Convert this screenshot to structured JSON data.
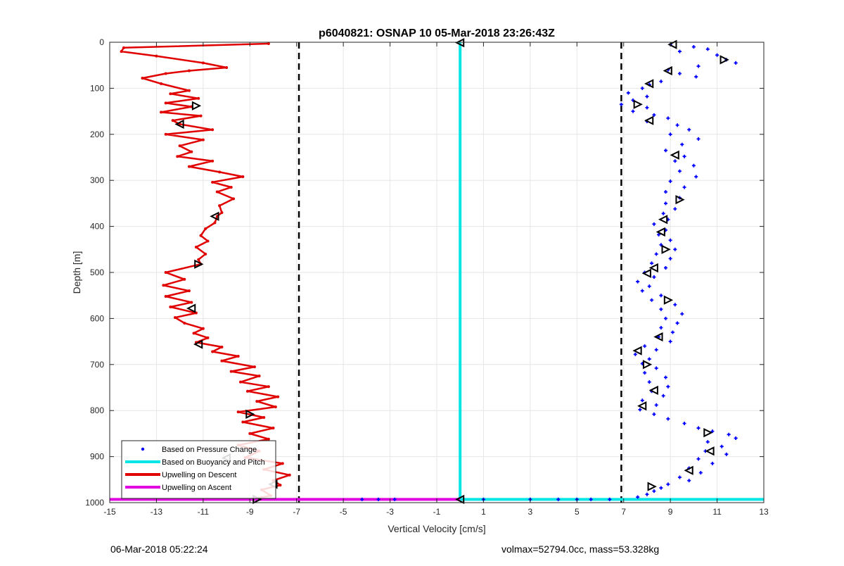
{
  "chart_data": {
    "type": "scatter",
    "title": "p6040821: OSNAP 10 05-Mar-2018 23:26:43Z",
    "xlabel": "Vertical Velocity [cm/s]",
    "ylabel": "Depth [m]",
    "xlim": [
      -15,
      13
    ],
    "ylim": [
      0,
      1000
    ],
    "y_reversed": true,
    "grid": true,
    "x_ticks": [
      -15,
      -13,
      -11,
      -9,
      -7,
      -5,
      -3,
      -1,
      1,
      3,
      5,
      7,
      9,
      11,
      13
    ],
    "y_ticks": [
      0,
      100,
      200,
      300,
      400,
      500,
      600,
      700,
      800,
      900,
      1000
    ],
    "legend_position": "bottom-left",
    "legend": [
      {
        "label": "Based on Pressure Change",
        "color": "#0000ff",
        "style": "dot"
      },
      {
        "label": "Based on Buoyancy and Pitch",
        "color": "#00e5e5",
        "style": "line"
      },
      {
        "label": "Upwelling on Descent",
        "color": "#e00000",
        "style": "line"
      },
      {
        "label": "Upwelling on Ascent",
        "color": "#e000e0",
        "style": "line"
      }
    ],
    "threshold_lines": [
      -6.9,
      6.9
    ],
    "series": [
      {
        "name": "Upwelling on Descent",
        "color": "#e00000",
        "points": [
          [
            -8.2,
            3
          ],
          [
            -14.4,
            12
          ],
          [
            -14.5,
            20
          ],
          [
            -13.0,
            30
          ],
          [
            -11.0,
            45
          ],
          [
            -10.0,
            55
          ],
          [
            -11.6,
            62
          ],
          [
            -12.6,
            68
          ],
          [
            -13.6,
            78
          ],
          [
            -12.8,
            90
          ],
          [
            -11.6,
            105
          ],
          [
            -12.4,
            112
          ],
          [
            -11.2,
            122
          ],
          [
            -12.6,
            132
          ],
          [
            -11.5,
            140
          ],
          [
            -12.8,
            152
          ],
          [
            -11.1,
            160
          ],
          [
            -12.3,
            170
          ],
          [
            -12.0,
            178
          ],
          [
            -10.6,
            190
          ],
          [
            -12.6,
            200
          ],
          [
            -11.0,
            212
          ],
          [
            -12.0,
            225
          ],
          [
            -11.5,
            238
          ],
          [
            -12.1,
            248
          ],
          [
            -10.6,
            258
          ],
          [
            -11.6,
            270
          ],
          [
            -10.3,
            282
          ],
          [
            -9.3,
            292
          ],
          [
            -10.6,
            304
          ],
          [
            -9.8,
            315
          ],
          [
            -10.4,
            325
          ],
          [
            -9.7,
            340
          ],
          [
            -10.3,
            355
          ],
          [
            -10.2,
            370
          ],
          [
            -10.4,
            378
          ],
          [
            -10.5,
            392
          ],
          [
            -10.9,
            405
          ],
          [
            -11.1,
            420
          ],
          [
            -10.8,
            432
          ],
          [
            -11.3,
            445
          ],
          [
            -10.9,
            460
          ],
          [
            -11.2,
            472
          ],
          [
            -11.1,
            482
          ],
          [
            -12.6,
            500
          ],
          [
            -11.8,
            515
          ],
          [
            -12.7,
            528
          ],
          [
            -11.6,
            540
          ],
          [
            -12.6,
            552
          ],
          [
            -11.5,
            565
          ],
          [
            -12.4,
            575
          ],
          [
            -11.3,
            588
          ],
          [
            -12.2,
            598
          ],
          [
            -11.8,
            610
          ],
          [
            -11.0,
            622
          ],
          [
            -11.4,
            632
          ],
          [
            -10.8,
            642
          ],
          [
            -11.3,
            652
          ],
          [
            -10.2,
            662
          ],
          [
            -10.6,
            672
          ],
          [
            -9.5,
            682
          ],
          [
            -10.2,
            692
          ],
          [
            -8.8,
            705
          ],
          [
            -9.8,
            715
          ],
          [
            -8.6,
            725
          ],
          [
            -9.4,
            738
          ],
          [
            -8.2,
            748
          ],
          [
            -9.1,
            758
          ],
          [
            -7.8,
            770
          ],
          [
            -8.7,
            780
          ],
          [
            -7.9,
            792
          ],
          [
            -9.5,
            803
          ],
          [
            -8.4,
            815
          ],
          [
            -9.3,
            825
          ],
          [
            -8.0,
            838
          ],
          [
            -9.0,
            850
          ],
          [
            -8.2,
            862
          ],
          [
            -9.5,
            875
          ],
          [
            -8.6,
            888
          ],
          [
            -9.2,
            902
          ],
          [
            -7.6,
            915
          ],
          [
            -8.4,
            928
          ],
          [
            -7.3,
            940
          ],
          [
            -8.0,
            952
          ],
          [
            -7.7,
            962
          ],
          [
            -8.5,
            972
          ],
          [
            -8.1,
            985
          ],
          [
            -8.7,
            990
          ]
        ]
      },
      {
        "name": "Based on Buoyancy and Pitch",
        "color": "#00e5e5",
        "points": [
          [
            0.0,
            0
          ],
          [
            0.0,
            993
          ],
          [
            13,
            993
          ]
        ]
      },
      {
        "name": "Upwelling on Ascent",
        "color": "#e000e0",
        "points": [
          [
            -15,
            993
          ],
          [
            0.0,
            993
          ]
        ]
      },
      {
        "name": "Based on Pressure Change",
        "color": "#0000ff",
        "points": [
          [
            9.0,
            5
          ],
          [
            10.0,
            10
          ],
          [
            10.6,
            15
          ],
          [
            9.4,
            20
          ],
          [
            11.0,
            28
          ],
          [
            11.4,
            38
          ],
          [
            11.8,
            45
          ],
          [
            10.2,
            52
          ],
          [
            8.9,
            60
          ],
          [
            9.4,
            68
          ],
          [
            10.1,
            75
          ],
          [
            8.6,
            85
          ],
          [
            8.1,
            92
          ],
          [
            7.8,
            100
          ],
          [
            7.2,
            110
          ],
          [
            8.0,
            118
          ],
          [
            7.4,
            126
          ],
          [
            6.9,
            135
          ],
          [
            8.0,
            142
          ],
          [
            7.4,
            150
          ],
          [
            8.3,
            158
          ],
          [
            8.9,
            165
          ],
          [
            8.0,
            172
          ],
          [
            9.3,
            180
          ],
          [
            9.8,
            190
          ],
          [
            9.0,
            200
          ],
          [
            10.2,
            210
          ],
          [
            9.5,
            222
          ],
          [
            8.8,
            235
          ],
          [
            9.6,
            248
          ],
          [
            9.2,
            258
          ],
          [
            10.0,
            268
          ],
          [
            9.4,
            280
          ],
          [
            10.1,
            292
          ],
          [
            9.0,
            302
          ],
          [
            9.6,
            315
          ],
          [
            8.8,
            325
          ],
          [
            9.4,
            338
          ],
          [
            8.8,
            350
          ],
          [
            9.2,
            362
          ],
          [
            8.7,
            372
          ],
          [
            8.9,
            385
          ],
          [
            8.3,
            395
          ],
          [
            8.8,
            408
          ],
          [
            8.5,
            418
          ],
          [
            9.0,
            430
          ],
          [
            8.6,
            440
          ],
          [
            9.2,
            450
          ],
          [
            8.4,
            460
          ],
          [
            9.0,
            470
          ],
          [
            8.2,
            480
          ],
          [
            8.8,
            490
          ],
          [
            7.9,
            500
          ],
          [
            8.3,
            510
          ],
          [
            7.6,
            520
          ],
          [
            8.1,
            530
          ],
          [
            7.8,
            540
          ],
          [
            8.6,
            550
          ],
          [
            8.2,
            560
          ],
          [
            9.2,
            570
          ],
          [
            8.6,
            580
          ],
          [
            9.5,
            590
          ],
          [
            8.8,
            600
          ],
          [
            9.3,
            610
          ],
          [
            8.6,
            620
          ],
          [
            9.1,
            630
          ],
          [
            8.5,
            640
          ],
          [
            9.0,
            650
          ],
          [
            7.9,
            660
          ],
          [
            8.4,
            668
          ],
          [
            7.5,
            678
          ],
          [
            8.1,
            688
          ],
          [
            7.8,
            698
          ],
          [
            8.4,
            708
          ],
          [
            7.9,
            718
          ],
          [
            8.8,
            728
          ],
          [
            8.1,
            738
          ],
          [
            8.9,
            748
          ],
          [
            8.2,
            758
          ],
          [
            8.7,
            768
          ],
          [
            7.8,
            778
          ],
          [
            8.4,
            788
          ],
          [
            7.7,
            798
          ],
          [
            8.3,
            808
          ],
          [
            8.9,
            818
          ],
          [
            9.6,
            828
          ],
          [
            10.2,
            838
          ],
          [
            10.8,
            845
          ],
          [
            11.5,
            852
          ],
          [
            11.8,
            860
          ],
          [
            10.6,
            868
          ],
          [
            11.2,
            878
          ],
          [
            10.5,
            888
          ],
          [
            11.4,
            895
          ],
          [
            10.2,
            905
          ],
          [
            10.8,
            915
          ],
          [
            9.8,
            925
          ],
          [
            10.3,
            935
          ],
          [
            9.4,
            945
          ],
          [
            9.8,
            952
          ],
          [
            8.9,
            960
          ],
          [
            8.6,
            968
          ],
          [
            8.3,
            975
          ],
          [
            8.0,
            982
          ],
          [
            7.6,
            988
          ],
          [
            1.0,
            993
          ],
          [
            3.0,
            993
          ],
          [
            4.2,
            993
          ],
          [
            5.0,
            993
          ],
          [
            5.6,
            993
          ],
          [
            6.4,
            993
          ],
          [
            -4.2,
            993
          ],
          [
            -3.5,
            993
          ],
          [
            -2.8,
            993
          ]
        ]
      },
      {
        "name": "triangle-markers",
        "color": "#000000",
        "points": [
          [
            -11.3,
            138
          ],
          [
            -12.0,
            178
          ],
          [
            -10.5,
            378
          ],
          [
            -11.2,
            482
          ],
          [
            -11.5,
            578
          ],
          [
            -11.2,
            656
          ],
          [
            -9.0,
            808
          ],
          [
            -10.0,
            903
          ],
          [
            -8.0,
            960
          ],
          [
            -8.7,
            993
          ],
          [
            0.0,
            1
          ],
          [
            9.1,
            5
          ],
          [
            11.3,
            38
          ],
          [
            8.9,
            62
          ],
          [
            8.1,
            90
          ],
          [
            7.6,
            135
          ],
          [
            8.1,
            170
          ],
          [
            9.2,
            245
          ],
          [
            9.4,
            342
          ],
          [
            8.7,
            385
          ],
          [
            8.6,
            412
          ],
          [
            8.8,
            450
          ],
          [
            8.3,
            490
          ],
          [
            8.0,
            502
          ],
          [
            8.9,
            560
          ],
          [
            8.5,
            640
          ],
          [
            7.6,
            670
          ],
          [
            8.0,
            700
          ],
          [
            8.3,
            756
          ],
          [
            7.8,
            790
          ],
          [
            10.6,
            848
          ],
          [
            10.7,
            888
          ],
          [
            9.8,
            930
          ],
          [
            8.2,
            965
          ],
          [
            0.0,
            993
          ]
        ]
      }
    ]
  },
  "footer": {
    "timestamp": "06-Mar-2018 05:22:24",
    "info": "volmax=52794.0cc, mass=53.328kg"
  }
}
